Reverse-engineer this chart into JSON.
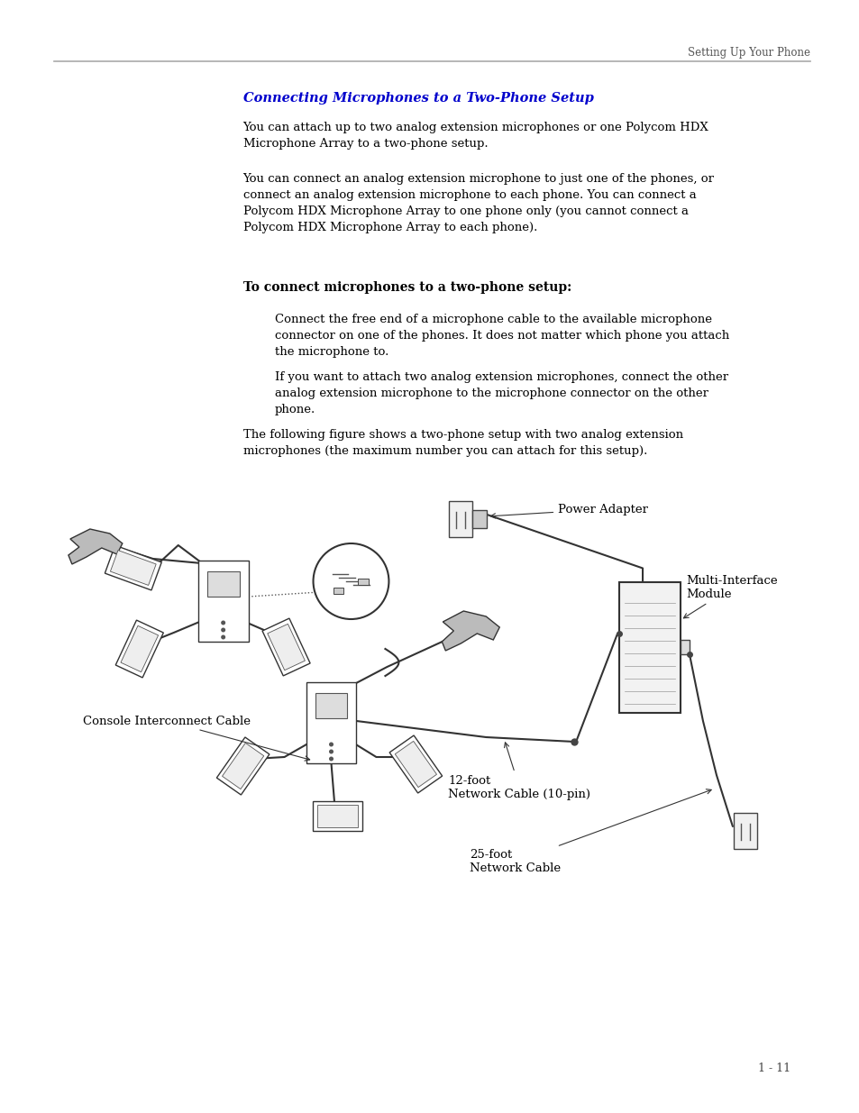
{
  "bg_color": "#ffffff",
  "header_text": "Setting Up Your Phone",
  "section_title": "Connecting Microphones to a Two-Phone Setup",
  "section_title_color": "#0000CC",
  "para1": "You can attach up to two analog extension microphones or one Polycom HDX\nMicrophone Array to a two-phone setup.",
  "para2": "You can connect an analog extension microphone to just one of the phones, or\nconnect an analog extension microphone to each phone. You can connect a\nPolycom HDX Microphone Array to one phone only (you cannot connect a\nPolycom HDX Microphone Array to each phone).",
  "subheading": "To connect microphones to a two-phone setup:",
  "bullet1": "Connect the free end of a microphone cable to the available microphone\nconnector on one of the phones. It does not matter which phone you attach\nthe microphone to.",
  "bullet2": "If you want to attach two analog extension microphones, connect the other\nanalog extension microphone to the microphone connector on the other\nphone.",
  "para_last": "The following figure shows a two-phone setup with two analog extension\nmicrophones (the maximum number you can attach for this setup).",
  "label_power_adapter": "Power Adapter",
  "label_multi_interface": "Multi-Interface\nModule",
  "label_console_cable": "Console Interconnect Cable",
  "label_12foot": "12-foot\nNetwork Cable (10-pin)",
  "label_25foot": "25-foot\nNetwork Cable",
  "page_number": "1 - 11",
  "font_size_body": 9.5,
  "font_size_header": 8.5,
  "font_size_section": 10.5,
  "font_size_subheading": 10,
  "font_size_label": 9.5
}
